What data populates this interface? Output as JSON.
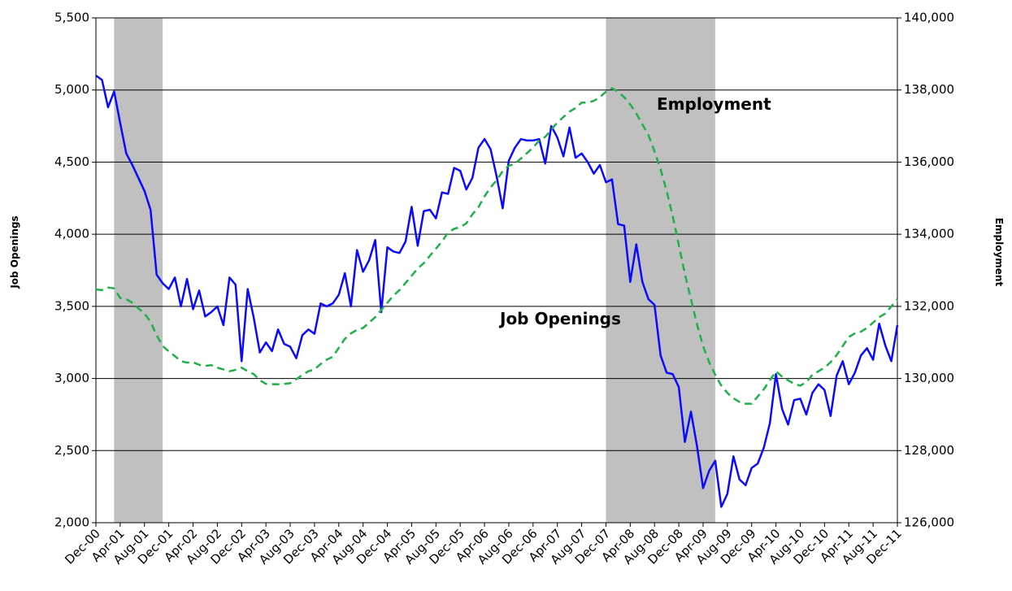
{
  "chart_data": {
    "type": "line",
    "y_label": "Job Openings",
    "y2_label": "Employment",
    "annotations": [
      "Employment",
      "Job Openings"
    ],
    "categories": [
      "Dec-00",
      null,
      null,
      null,
      "Apr-01",
      null,
      null,
      null,
      "Aug-01",
      null,
      null,
      null,
      "Dec-01",
      null,
      null,
      null,
      "Apr-02",
      null,
      null,
      null,
      "Aug-02",
      null,
      null,
      null,
      "Dec-02",
      null,
      null,
      null,
      "Apr-03",
      null,
      null,
      null,
      "Aug-03",
      null,
      null,
      null,
      "Dec-03",
      null,
      null,
      null,
      "Apr-04",
      null,
      null,
      null,
      "Aug-04",
      null,
      null,
      null,
      "Dec-04",
      null,
      null,
      null,
      "Apr-05",
      null,
      null,
      null,
      "Aug-05",
      null,
      null,
      null,
      "Dec-05",
      null,
      null,
      null,
      "Apr-06",
      null,
      null,
      null,
      "Aug-06",
      null,
      null,
      null,
      "Dec-06",
      null,
      null,
      null,
      "Apr-07",
      null,
      null,
      null,
      "Aug-07",
      null,
      null,
      null,
      "Dec-07",
      null,
      null,
      null,
      "Apr-08",
      null,
      null,
      null,
      "Aug-08",
      null,
      null,
      null,
      "Dec-08",
      null,
      null,
      null,
      "Apr-09",
      null,
      null,
      null,
      "Aug-09",
      null,
      null,
      null,
      "Dec-09",
      null,
      null,
      null,
      "Apr-10",
      null,
      null,
      null,
      "Aug-10",
      null,
      null,
      null,
      "Dec-10",
      null,
      null,
      null,
      "Apr-11",
      null,
      null,
      null,
      "Aug-11",
      null,
      null,
      null,
      "Dec-11"
    ],
    "shaded_ranges": [
      [
        3,
        11
      ],
      [
        84,
        102
      ]
    ],
    "shade_color": "#c0c0c0",
    "series": [
      {
        "name": "Job Openings",
        "color": "#0a0aff",
        "dash": false,
        "values": [
          5100,
          5070,
          4880,
          4990,
          4770,
          4560,
          4480,
          4390,
          4300,
          4170,
          3720,
          3660,
          3620,
          3700,
          3500,
          3690,
          3480,
          3610,
          3430,
          3460,
          3500,
          3370,
          3700,
          3650,
          3120,
          3620,
          3420,
          3180,
          3250,
          3190,
          3340,
          3240,
          3220,
          3140,
          3300,
          3340,
          3310,
          3520,
          3500,
          3520,
          3580,
          3730,
          3500,
          3890,
          3740,
          3820,
          3960,
          3460,
          3910,
          3880,
          3870,
          3950,
          4190,
          3920,
          4160,
          4170,
          4110,
          4290,
          4280,
          4460,
          4440,
          4310,
          4390,
          4600,
          4660,
          4590,
          4400,
          4180,
          4510,
          4600,
          4660,
          4650,
          4650,
          4660,
          4490,
          4750,
          4670,
          4540,
          4740,
          4530,
          4560,
          4500,
          4420,
          4480,
          4360,
          4380,
          4070,
          4060,
          3670,
          3930,
          3670,
          3550,
          3510,
          3160,
          3040,
          3030,
          2940,
          2560,
          2770,
          2530,
          2240,
          2360,
          2430,
          2110,
          2200,
          2460,
          2300,
          2260,
          2380,
          2410,
          2520,
          2690,
          3030,
          2790,
          2680,
          2850,
          2860,
          2750,
          2900,
          2960,
          2920,
          2740,
          3020,
          3120,
          2960,
          3040,
          3160,
          3210,
          3130,
          3380,
          3230,
          3120,
          3370
        ]
      },
      {
        "name": "Employment",
        "color": "#1fb04a",
        "dash": true,
        "axis": "y2",
        "values": [
          132470,
          132450,
          132520,
          132500,
          132230,
          132200,
          132100,
          131940,
          131800,
          131570,
          131200,
          130900,
          130750,
          130620,
          130480,
          130440,
          130450,
          130380,
          130350,
          130370,
          130300,
          130250,
          130200,
          130240,
          130300,
          130200,
          130120,
          129950,
          129850,
          129840,
          129840,
          129850,
          129870,
          129980,
          130100,
          130200,
          130250,
          130400,
          130520,
          130600,
          130850,
          131100,
          131250,
          131350,
          131400,
          131550,
          131700,
          131900,
          132100,
          132300,
          132450,
          132650,
          132850,
          133050,
          133200,
          133400,
          133600,
          133800,
          134050,
          134150,
          134200,
          134300,
          134550,
          134750,
          135050,
          135300,
          135500,
          135750,
          135900,
          135950,
          136100,
          136250,
          136400,
          136600,
          136700,
          136900,
          137100,
          137250,
          137400,
          137500,
          137650,
          137650,
          137700,
          137800,
          137950,
          138050,
          137950,
          137800,
          137600,
          137350,
          137050,
          136750,
          136300,
          135800,
          135200,
          134500,
          133700,
          132900,
          132200,
          131500,
          130900,
          130450,
          130100,
          129800,
          129600,
          129450,
          129350,
          129300,
          129300,
          129500,
          129700,
          129950,
          130200,
          130050,
          129950,
          129850,
          129800,
          129900,
          130100,
          130200,
          130300,
          130450,
          130650,
          130900,
          131150,
          131250,
          131300,
          131400,
          131550,
          131700,
          131800,
          132000,
          132200
        ]
      }
    ],
    "ylim": [
      2000,
      5500
    ],
    "yticks": [
      {
        "value": 2000,
        "label": "2,000"
      },
      {
        "value": 2500,
        "label": "2,500"
      },
      {
        "value": 3000,
        "label": "3,000"
      },
      {
        "value": 3500,
        "label": "3,500"
      },
      {
        "value": 4000,
        "label": "4,000"
      },
      {
        "value": 4500,
        "label": "4,500"
      },
      {
        "value": 5000,
        "label": "5,000"
      },
      {
        "value": 5500,
        "label": "5,500"
      }
    ],
    "y2lim": [
      126000,
      140000
    ],
    "y2ticks": [
      {
        "value": 126000,
        "label": "126,000"
      },
      {
        "value": 128000,
        "label": "128,000"
      },
      {
        "value": 130000,
        "label": "130,000"
      },
      {
        "value": 132000,
        "label": "132,000"
      },
      {
        "value": 134000,
        "label": "134,000"
      },
      {
        "value": 136000,
        "label": "136,000"
      },
      {
        "value": 138000,
        "label": "138,000"
      },
      {
        "value": 140000,
        "label": "140,000"
      }
    ],
    "grid": true
  }
}
